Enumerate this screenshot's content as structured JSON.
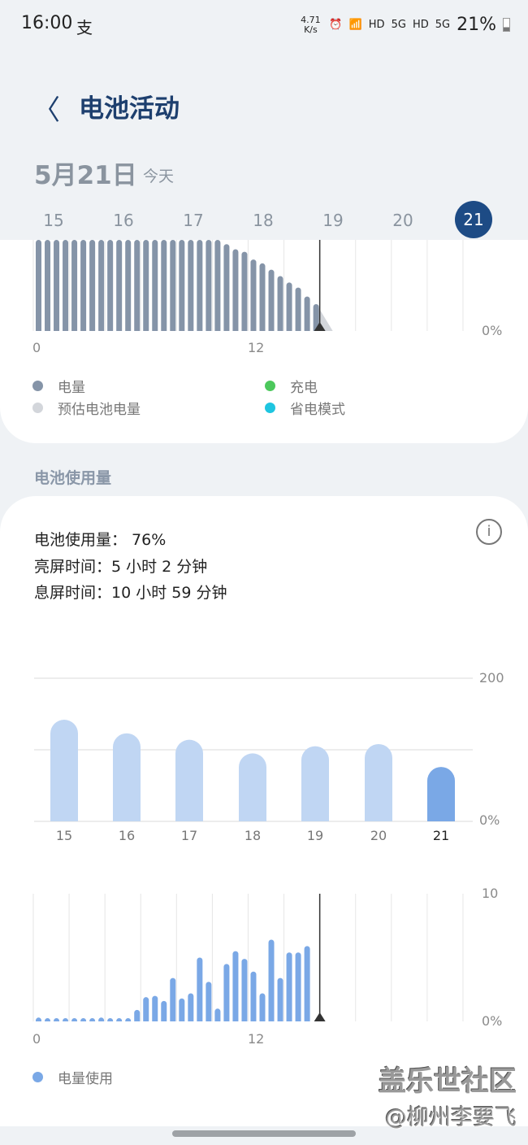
{
  "status_bar": {
    "time": "16:00",
    "app_icon": "alipay-icon",
    "net_speed": "4.71 K/s",
    "icons": [
      "alarm-icon",
      "wifi-icon",
      "hd-icon",
      "5g-signal-icon",
      "hd-icon",
      "5g-signal-icon"
    ],
    "hd": "HD",
    "g5": "5G",
    "battery": "21%"
  },
  "header": {
    "back_icon": "chevron-left-icon",
    "title": "电池活动"
  },
  "date": {
    "label": "5月21日",
    "sub": "今天"
  },
  "days": [
    {
      "label": "15"
    },
    {
      "label": "16"
    },
    {
      "label": "17"
    },
    {
      "label": "18"
    },
    {
      "label": "19"
    },
    {
      "label": "20"
    },
    {
      "label": "21",
      "selected": true
    }
  ],
  "legend1": [
    {
      "label": "电量",
      "color": "#8594a8"
    },
    {
      "label": "充电",
      "color": "#4cc85c"
    },
    {
      "label": "预估电池电量",
      "color": "#d3d6db"
    },
    {
      "label": "省电模式",
      "color": "#1ec5e0"
    }
  ],
  "section_title": "电池使用量",
  "stats": {
    "usage": "电池使用量：  76%",
    "screen_on": "亮屏时间：5 小时 2 分钟",
    "screen_off": "息屏时间：10 小时 59 分钟"
  },
  "info_icon": "info-icon",
  "legend2": {
    "label": "电量使用",
    "color": "#7aa8e6"
  },
  "watermark": {
    "line1": "盖乐世社区",
    "line2": "@柳州李要飞"
  },
  "chart_data": [
    {
      "type": "bar",
      "name": "battery-level",
      "x_unit": "hour",
      "x_ticks": [
        "0",
        "12"
      ],
      "xlim": [
        0,
        24
      ],
      "y_tick_labels": [
        "0%"
      ],
      "now_hour": 16,
      "color": "#8594a8",
      "values": [
        100,
        99,
        98,
        97,
        96,
        95,
        94,
        93,
        92,
        91,
        90,
        89,
        88,
        87,
        86,
        85,
        84,
        83,
        82,
        81,
        80,
        68,
        64,
        62,
        56,
        53,
        48,
        43,
        38,
        34,
        27,
        21
      ],
      "projection_color": "#d3d6db"
    },
    {
      "type": "bar",
      "name": "weekly-usage",
      "categories": [
        "15",
        "16",
        "17",
        "18",
        "19",
        "20",
        "21"
      ],
      "values": [
        142,
        123,
        114,
        95,
        105,
        108,
        76
      ],
      "ylim": [
        0,
        200
      ],
      "y_tick_labels": [
        "200",
        "0%"
      ],
      "color": "#c0d6f3",
      "highlight_color": "#7aa8e6"
    },
    {
      "type": "bar",
      "name": "hourly-usage",
      "x_unit": "hour",
      "x_ticks": [
        "0",
        "12"
      ],
      "xlim": [
        0,
        24
      ],
      "ylim": [
        0,
        10
      ],
      "y_tick_labels": [
        "10",
        "0%"
      ],
      "now_hour": 16,
      "color": "#7aa8e6",
      "values": [
        0.3,
        0.2,
        0.1,
        0.2,
        0.1,
        0.1,
        0.1,
        0.3,
        0.1,
        0.1,
        0.1,
        0.9,
        1.9,
        2.0,
        1.6,
        3.4,
        1.8,
        2.2,
        5.0,
        3.1,
        1.0,
        4.5,
        5.5,
        4.9,
        3.9,
        2.2,
        6.4,
        3.4,
        5.4,
        5.4,
        5.9
      ]
    }
  ]
}
